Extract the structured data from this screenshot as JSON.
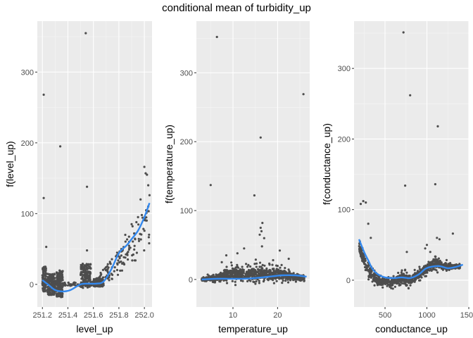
{
  "title": "conditional mean of turbidity_up",
  "colors": {
    "panel": "#ebebeb",
    "grid_major": "#ffffff",
    "grid_minor": "#f5f5f5",
    "points": "#4d4d4d",
    "smooth": "#3388ee"
  },
  "chart_data": [
    {
      "type": "scatter",
      "xlabel": "level_up",
      "ylabel": "f(level_up)",
      "xlim": [
        251.16,
        252.06
      ],
      "ylim": [
        -32,
        372
      ],
      "xticks": [
        251.2,
        251.4,
        251.6,
        251.8,
        252.0
      ],
      "xtick_labels": [
        "251.2",
        "251.4",
        "251.6",
        "251.8",
        "252.0"
      ],
      "yticks": [
        0,
        100,
        200,
        300
      ],
      "ytick_labels": [
        "0",
        "100",
        "200",
        "300"
      ],
      "clusters": [
        {
          "x": [
            251.2,
            251.23
          ],
          "y": [
            -10,
            25
          ]
        },
        {
          "x": [
            251.24,
            251.3
          ],
          "y": [
            -15,
            15
          ]
        },
        {
          "x": [
            251.31,
            251.36
          ],
          "y": [
            -18,
            20
          ]
        },
        {
          "x": [
            251.5,
            251.58
          ],
          "y": [
            -5,
            30
          ]
        },
        {
          "x": [
            251.6,
            251.68
          ],
          "y": [
            -3,
            8
          ]
        }
      ],
      "points": [
        [
          251.21,
          268
        ],
        [
          251.21,
          122
        ],
        [
          251.23,
          53
        ],
        [
          251.34,
          195
        ],
        [
          251.54,
          355
        ],
        [
          251.55,
          138
        ],
        [
          251.55,
          48
        ],
        [
          251.9,
          85
        ],
        [
          251.95,
          95
        ],
        [
          252.0,
          166
        ],
        [
          252.01,
          157
        ],
        [
          252.02,
          155
        ],
        [
          252.03,
          140
        ],
        [
          252.04,
          126
        ],
        [
          252.03,
          110
        ],
        [
          251.97,
          120
        ],
        [
          251.98,
          98
        ],
        [
          251.92,
          72
        ],
        [
          251.85,
          70
        ],
        [
          251.88,
          60
        ]
      ],
      "curve": [
        {
          "x": 251.2,
          "values": [
            0,
            7
          ]
        },
        {
          "x": 251.33,
          "values": [
            -2,
            2
          ]
        },
        {
          "x": 251.6,
          "values": [
            -2,
            4
          ]
        },
        {
          "x": 251.8,
          "values": [
            10,
            50
          ]
        },
        {
          "x": 252.04,
          "values": [
            52,
            122
          ]
        }
      ],
      "smooth": [
        [
          251.2,
          6
        ],
        [
          251.25,
          -1
        ],
        [
          251.3,
          -8
        ],
        [
          251.36,
          -10
        ],
        [
          251.42,
          -8
        ],
        [
          251.5,
          0
        ],
        [
          251.56,
          1
        ],
        [
          251.62,
          1
        ],
        [
          251.68,
          4
        ],
        [
          251.74,
          21
        ],
        [
          251.8,
          44
        ],
        [
          251.86,
          55
        ],
        [
          251.9,
          64
        ],
        [
          251.95,
          76
        ],
        [
          252.0,
          95
        ],
        [
          252.04,
          115
        ]
      ]
    },
    {
      "type": "scatter",
      "xlabel": "temperature_up",
      "ylabel": "f(temperature_up)",
      "xlim": [
        1.8,
        27.2
      ],
      "ylim": [
        -40,
        375
      ],
      "xticks": [
        10,
        20
      ],
      "xtick_labels": [
        "10",
        "20"
      ],
      "yticks": [
        0,
        100,
        200,
        300
      ],
      "ytick_labels": [
        "0",
        "100",
        "200",
        "300"
      ],
      "band": [
        [
          3,
          -6,
          6
        ],
        [
          6,
          -7,
          10
        ],
        [
          9,
          -10,
          25
        ],
        [
          12,
          -12,
          30
        ],
        [
          15,
          -15,
          32
        ],
        [
          18,
          -12,
          28
        ],
        [
          21,
          -10,
          25
        ],
        [
          24,
          -8,
          15
        ],
        [
          26,
          -5,
          8
        ]
      ],
      "points": [
        [
          6.4,
          352
        ],
        [
          25.8,
          269
        ],
        [
          16.2,
          206
        ],
        [
          5.0,
          137
        ],
        [
          14.8,
          122
        ],
        [
          16.6,
          82
        ],
        [
          16.2,
          75
        ],
        [
          16.4,
          70
        ],
        [
          16.0,
          65
        ],
        [
          17.0,
          60
        ],
        [
          12.5,
          45
        ],
        [
          8.5,
          35
        ],
        [
          20.5,
          42
        ],
        [
          11.0,
          38
        ],
        [
          16.5,
          48
        ],
        [
          22.5,
          30
        ],
        [
          7.5,
          25
        ],
        [
          19.0,
          28
        ]
      ],
      "smooth": [
        [
          3,
          0
        ],
        [
          6,
          1
        ],
        [
          9,
          1
        ],
        [
          12,
          1
        ],
        [
          15,
          2
        ],
        [
          18,
          4
        ],
        [
          21,
          6
        ],
        [
          24,
          6
        ],
        [
          26.5,
          4
        ]
      ]
    },
    {
      "type": "scatter",
      "xlabel": "conductance_up",
      "ylabel": "f(conductance_up)",
      "xlim": [
        130,
        1500
      ],
      "ylim": [
        -38,
        367
      ],
      "xticks": [
        500,
        1000,
        1500
      ],
      "xtick_labels": [
        "500",
        "1000",
        "1500"
      ],
      "yticks": [
        0,
        100,
        200,
        300
      ],
      "ytick_labels": [
        "0",
        "100",
        "200",
        "300"
      ],
      "band": [
        [
          190,
          30,
          65
        ],
        [
          260,
          5,
          45
        ],
        [
          330,
          -10,
          30
        ],
        [
          400,
          -15,
          15
        ],
        [
          500,
          -15,
          10
        ],
        [
          600,
          -15,
          10
        ],
        [
          700,
          -10,
          20
        ],
        [
          800,
          -15,
          15
        ],
        [
          900,
          -5,
          20
        ],
        [
          1000,
          5,
          30
        ],
        [
          1100,
          5,
          45
        ],
        [
          1200,
          10,
          30
        ],
        [
          1300,
          10,
          28
        ],
        [
          1400,
          15,
          25
        ]
      ],
      "points": [
        [
          720,
          351
        ],
        [
          800,
          262
        ],
        [
          1130,
          218
        ],
        [
          740,
          134
        ],
        [
          1100,
          136
        ],
        [
          210,
          108
        ],
        [
          240,
          112
        ],
        [
          270,
          110
        ],
        [
          300,
          80
        ],
        [
          1310,
          66
        ],
        [
          330,
          60
        ],
        [
          200,
          55
        ],
        [
          1120,
          60
        ],
        [
          1000,
          50
        ],
        [
          760,
          40
        ],
        [
          980,
          45
        ],
        [
          1150,
          58
        ],
        [
          1040,
          40
        ]
      ],
      "smooth": [
        [
          190,
          58
        ],
        [
          250,
          40
        ],
        [
          300,
          28
        ],
        [
          350,
          16
        ],
        [
          420,
          8
        ],
        [
          500,
          4
        ],
        [
          600,
          3
        ],
        [
          700,
          4
        ],
        [
          800,
          3
        ],
        [
          900,
          8
        ],
        [
          980,
          16
        ],
        [
          1050,
          19
        ],
        [
          1150,
          20
        ],
        [
          1250,
          17
        ],
        [
          1350,
          19
        ],
        [
          1430,
          22
        ]
      ]
    }
  ]
}
